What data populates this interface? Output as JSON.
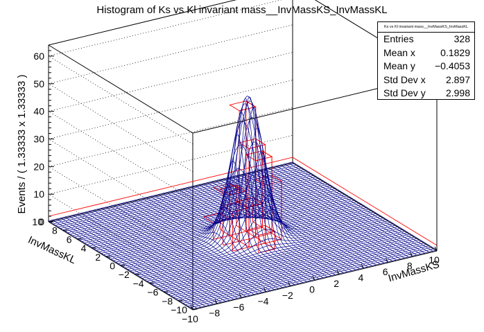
{
  "chart_data": {
    "type": "lego-surface-3d",
    "title": "Histogram of Ks vs Kl invariant mass__InvMassKS_InvMassKL",
    "xlabel": "InvMassKS",
    "ylabel": "InvMassKL",
    "zlabel": "Events / ( 1.33333 x 1.33333 )",
    "xlim": [
      -10,
      10
    ],
    "ylim": [
      -10,
      10
    ],
    "zlim": [
      0,
      64
    ],
    "x_ticks": [
      "−10",
      "−8",
      "−6",
      "−4",
      "−2",
      "0",
      "2",
      "4",
      "6",
      "8",
      "10"
    ],
    "y_ticks": [
      "−10",
      "−8",
      "−6",
      "−4",
      "−2",
      "0",
      "2",
      "4",
      "6",
      "8",
      "10"
    ],
    "z_ticks": [
      "0",
      "10",
      "20",
      "30",
      "40",
      "50",
      "60"
    ],
    "peak": {
      "x": 0.18,
      "y": -0.41,
      "height": 51,
      "sigma": 1.1,
      "baseline": 0.3
    },
    "colors": {
      "surface": "#00008b",
      "lego": "#ff0000",
      "grid": "#000000"
    }
  },
  "stats": {
    "header": "Ks vs Kl invariant mass__InvMassKS_InvMassKL",
    "rows": [
      {
        "label": "Entries",
        "value": "328"
      },
      {
        "label": "Mean x",
        "value": "0.1829"
      },
      {
        "label": "Mean y",
        "value": "−0.4053"
      },
      {
        "label": "Std Dev x",
        "value": "2.897"
      },
      {
        "label": "Std Dev y",
        "value": "2.998"
      }
    ]
  }
}
